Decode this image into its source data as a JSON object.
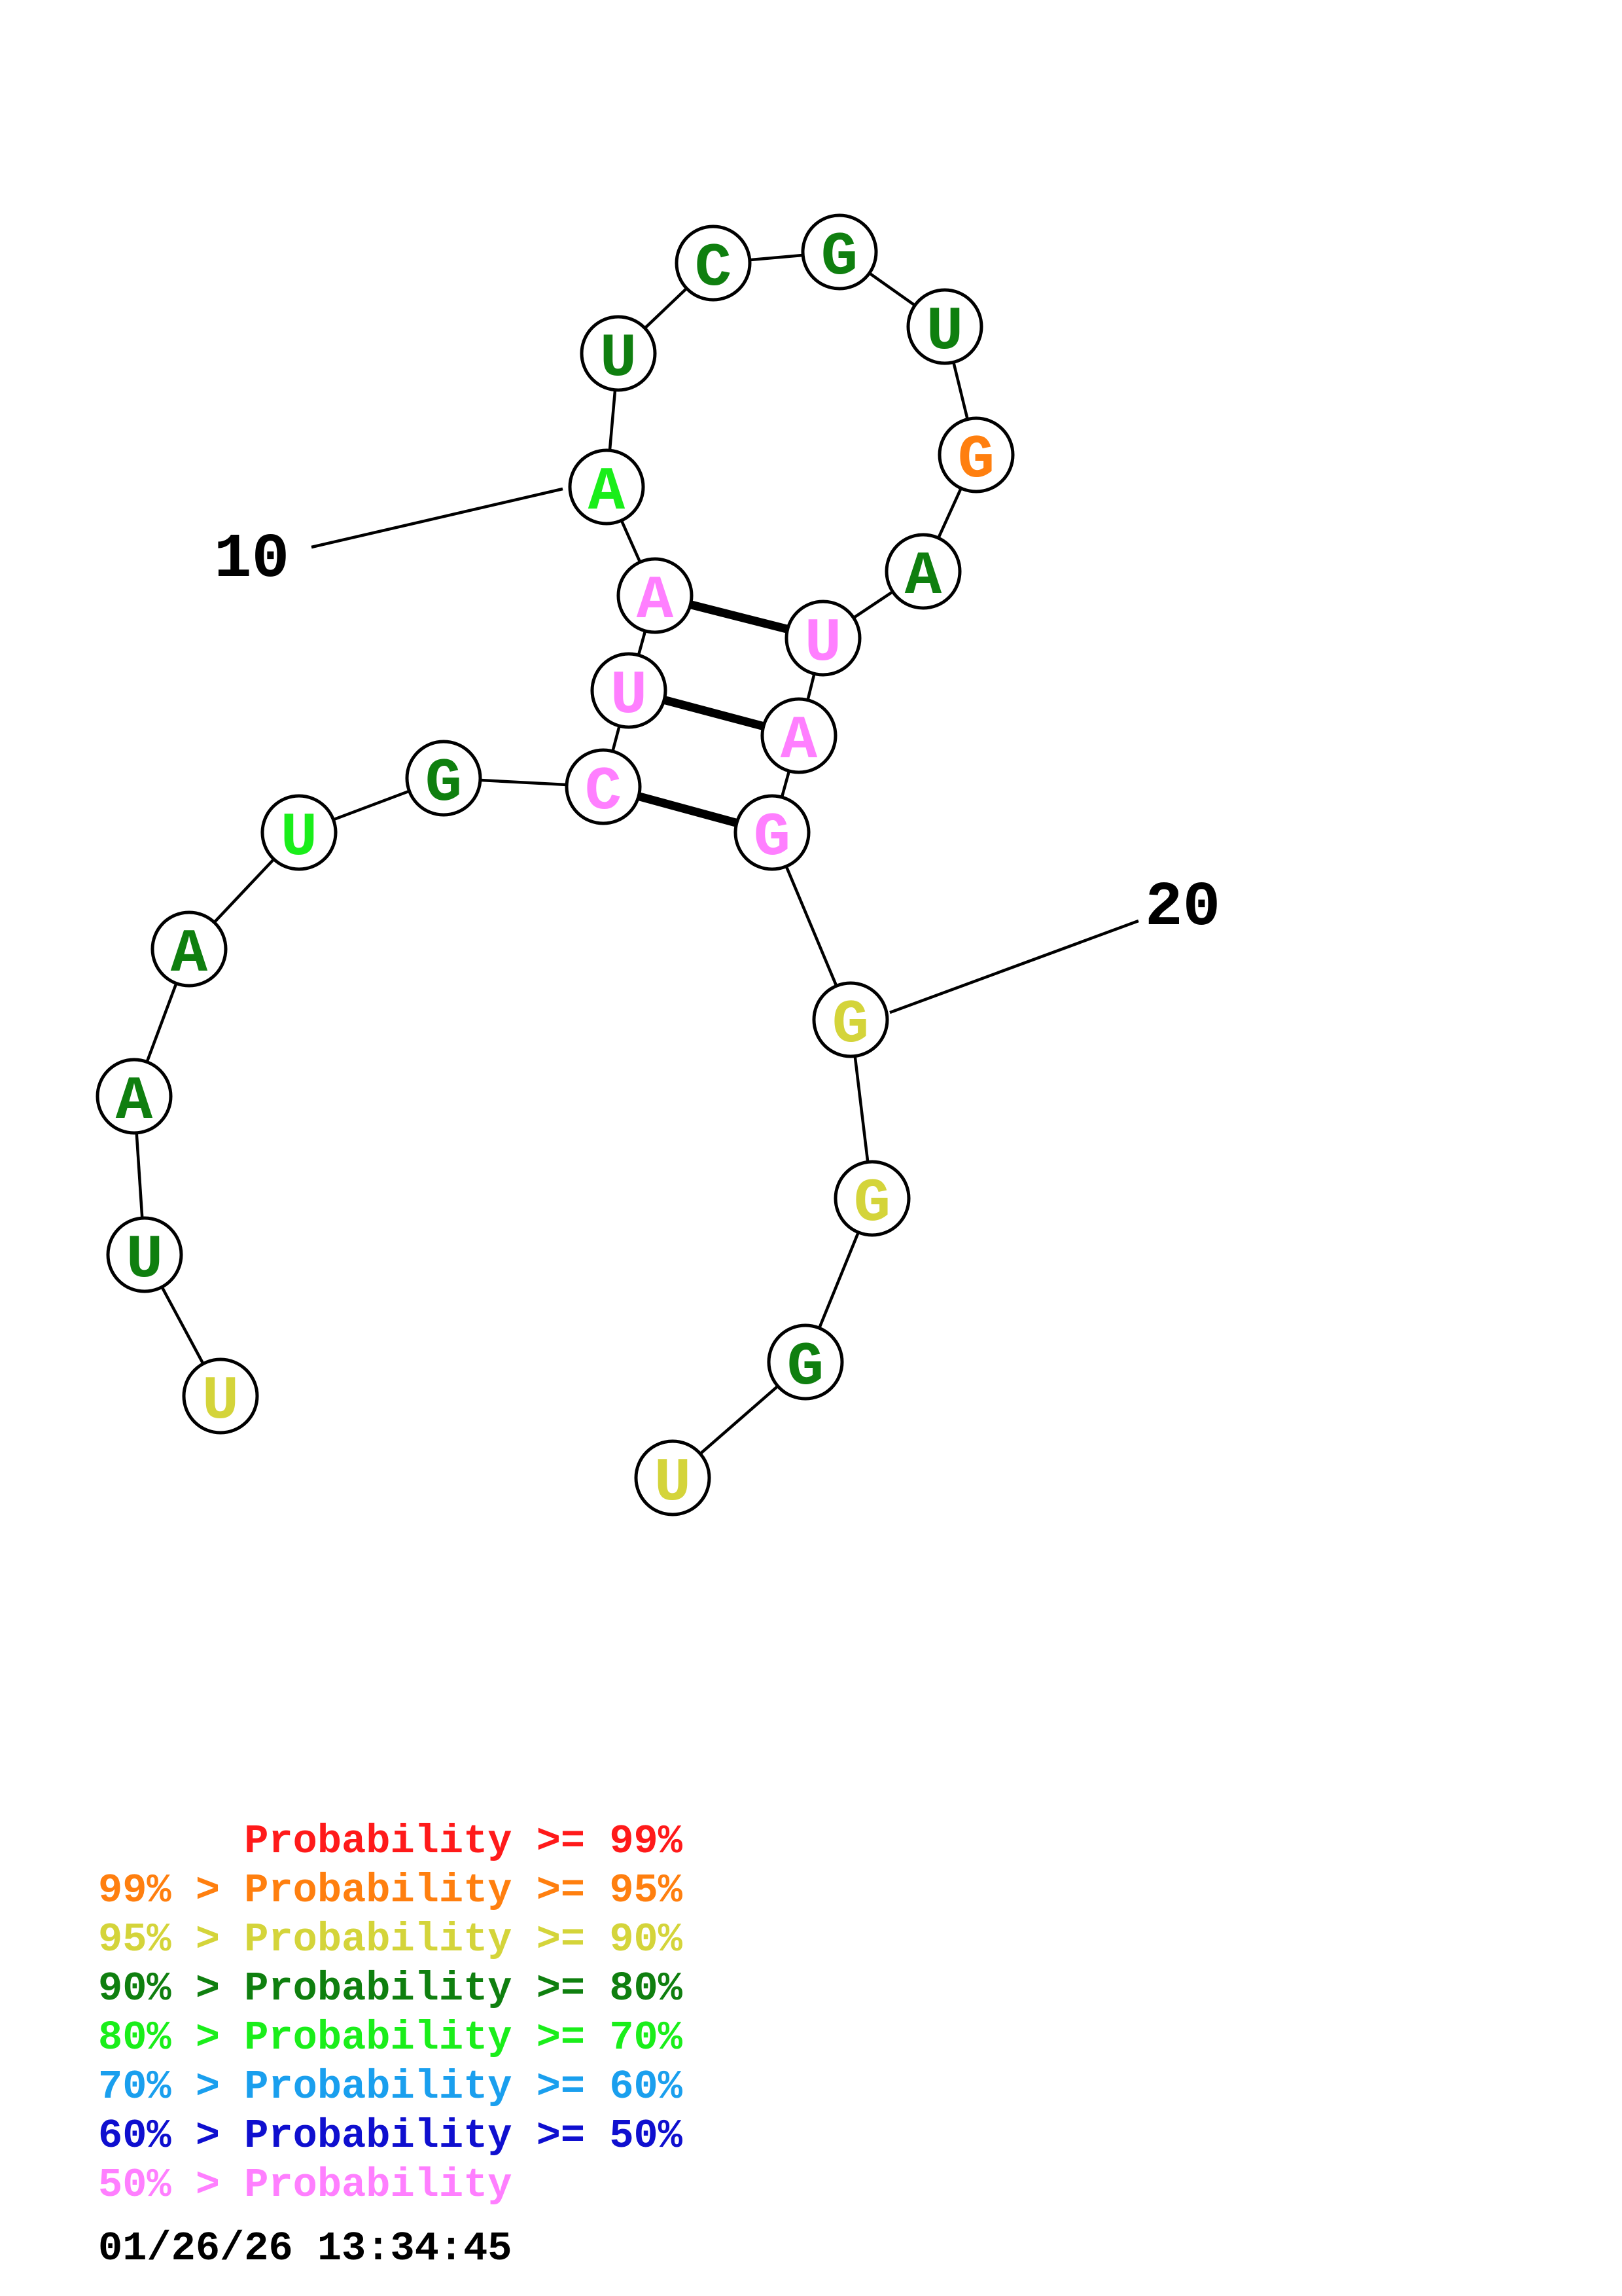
{
  "structure": {
    "nucleotides": [
      {
        "base": "U",
        "color": "#d4d43a"
      },
      {
        "base": "U",
        "color": "#0f7f0f"
      },
      {
        "base": "A",
        "color": "#0f7f0f"
      },
      {
        "base": "A",
        "color": "#0f7f0f"
      },
      {
        "base": "U",
        "color": "#1aee1a"
      },
      {
        "base": "G",
        "color": "#0f7f0f"
      },
      {
        "base": "C",
        "color": "#ff7fff"
      },
      {
        "base": "U",
        "color": "#ff7fff"
      },
      {
        "base": "A",
        "color": "#ff7fff"
      },
      {
        "base": "A",
        "color": "#1aee1a"
      },
      {
        "base": "U",
        "color": "#0f7f0f"
      },
      {
        "base": "C",
        "color": "#0f7f0f"
      },
      {
        "base": "G",
        "color": "#0f7f0f"
      },
      {
        "base": "U",
        "color": "#0f7f0f"
      },
      {
        "base": "G",
        "color": "#ff7f0f"
      },
      {
        "base": "A",
        "color": "#0f7f0f"
      },
      {
        "base": "U",
        "color": "#ff7fff"
      },
      {
        "base": "A",
        "color": "#ff7fff"
      },
      {
        "base": "G",
        "color": "#ff7fff"
      },
      {
        "base": "G",
        "color": "#d4d43a"
      },
      {
        "base": "G",
        "color": "#d4d43a"
      },
      {
        "base": "G",
        "color": "#0f7f0f"
      },
      {
        "base": "U",
        "color": "#d4d43a"
      }
    ],
    "base_pairs": [
      [
        7,
        19
      ],
      [
        8,
        18
      ],
      [
        9,
        17
      ]
    ],
    "position_labels": [
      {
        "text": "10",
        "nucleotide": 10
      },
      {
        "text": "20",
        "nucleotide": 20
      }
    ]
  },
  "legend": [
    {
      "text": "      Probability >= 99%",
      "color": "#ff1a1a"
    },
    {
      "text": "99% > Probability >= 95%",
      "color": "#ff7f0f"
    },
    {
      "text": "95% > Probability >= 90%",
      "color": "#d4d43a"
    },
    {
      "text": "90% > Probability >= 80%",
      "color": "#0f7f0f"
    },
    {
      "text": "80% > Probability >= 70%",
      "color": "#1aee1a"
    },
    {
      "text": "70% > Probability >= 60%",
      "color": "#1a9fee"
    },
    {
      "text": "60% > Probability >= 50%",
      "color": "#0f0fcf"
    },
    {
      "text": "50% > Probability",
      "color": "#ff7fff"
    }
  ],
  "timestamp": "01/26/26 13:34:45"
}
